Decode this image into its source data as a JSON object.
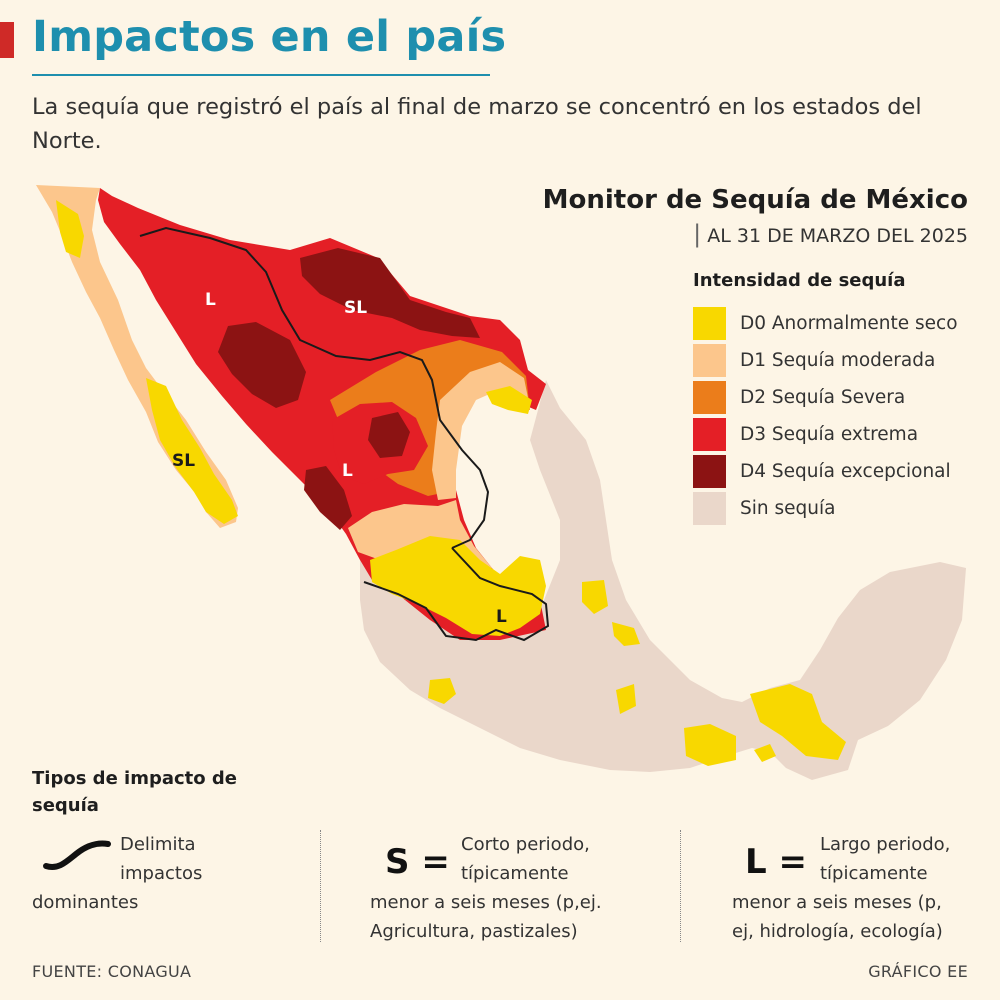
{
  "header": {
    "title": "Impactos en el país",
    "subtitle": "La sequía que registró el país al final de marzo se concentró en los estados del Norte."
  },
  "map": {
    "title": "Monitor de Sequía de México",
    "date": "AL 31 DE MARZO DEL 2025",
    "legend_title": "Intensidad de sequía",
    "legend": [
      {
        "label": "D0 Anormalmente seco",
        "color": "#f8d800"
      },
      {
        "label": "D1 Sequía moderada",
        "color": "#fcc68c"
      },
      {
        "label": "D2 Sequía Severa",
        "color": "#eb7d1b"
      },
      {
        "label": "D3 Sequía extrema",
        "color": "#e41f26"
      },
      {
        "label": "D4 Sequía excepcional",
        "color": "#8c1313"
      },
      {
        "label": "Sin sequía",
        "color": "#ead7ca"
      }
    ],
    "region_labels": {
      "l1": "L",
      "sl1": "SL",
      "sl2": "SL",
      "l2": "L",
      "l3": "L"
    }
  },
  "impact": {
    "title": "Tipos de impacto de sequía",
    "delimita": "Delimita impactos",
    "dominantes": "dominantes",
    "s_code": "S =",
    "s_line1": "Corto periodo,",
    "s_line2": "típicamente",
    "s_line3": "menor a seis meses (p,ej.",
    "s_line4": "Agricultura, pastizales)",
    "l_code": "L =",
    "l_line1": "Largo periodo,",
    "l_line2": "típicamente",
    "l_line3": "menor a seis meses (p,",
    "l_line4": "ej, hidrología, ecología)"
  },
  "footer": {
    "source": "FUENTE: CONAGUA",
    "credit": "GRÁFICO EE"
  }
}
